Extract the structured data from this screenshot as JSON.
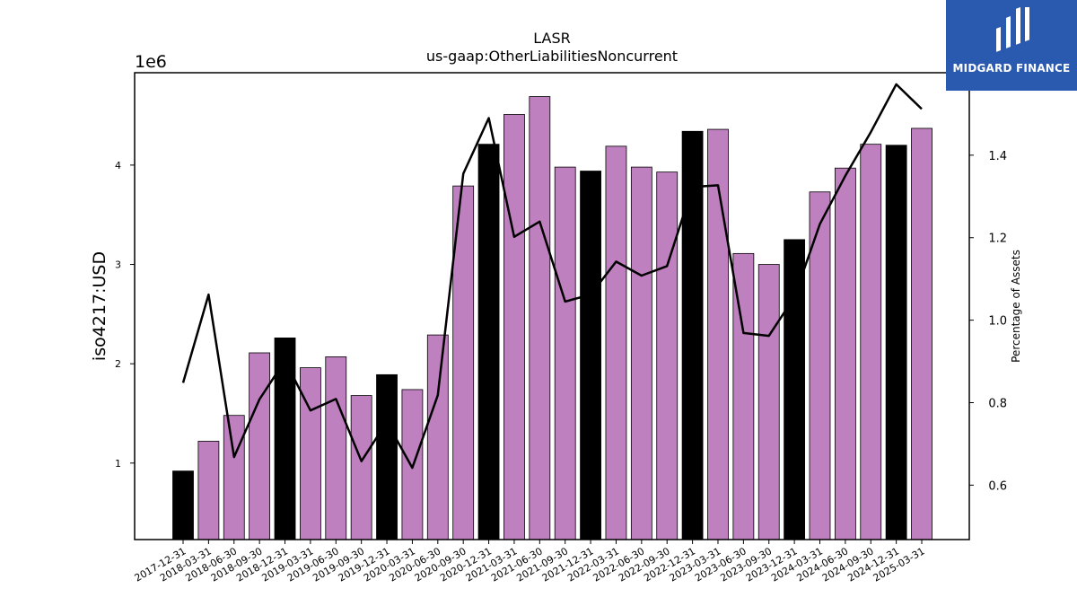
{
  "brand": {
    "name": "MIDGARD FINANCE",
    "icon": "midgard-logo-icon",
    "background": "#2a5ab0"
  },
  "chart_data": {
    "type": "bar",
    "title": "LASR",
    "subtitle": "us-gaap:OtherLiabilitiesNoncurrent",
    "ylabel": "iso4217:USD",
    "y_scale_label": "1e6",
    "y2label": "Percentage of Assets",
    "ylim": [
      230000,
      4930000
    ],
    "y2lim": [
      0.468,
      1.6
    ],
    "yticks": [
      1000000,
      2000000,
      3000000,
      4000000
    ],
    "ytick_labels": [
      "1",
      "2",
      "3",
      "4"
    ],
    "y2ticks": [
      0.6,
      0.8,
      1.0,
      1.2,
      1.4
    ],
    "y2tick_labels": [
      "0.6",
      "0.8",
      "1.0",
      "1.2",
      "1.4"
    ],
    "grid": false,
    "colors": {
      "annual": "#000000",
      "quarterly": "#bf80bf",
      "line": "#000000"
    },
    "categories": [
      "2017-12-31",
      "2018-03-31",
      "2018-06-30",
      "2018-09-30",
      "2018-12-31",
      "2019-03-31",
      "2019-06-30",
      "2019-09-30",
      "2019-12-31",
      "2020-03-31",
      "2020-06-30",
      "2020-09-30",
      "2020-12-31",
      "2021-03-31",
      "2021-06-30",
      "2021-09-30",
      "2021-12-31",
      "2022-03-31",
      "2022-06-30",
      "2022-09-30",
      "2022-12-31",
      "2023-03-31",
      "2023-06-30",
      "2023-09-30",
      "2023-12-31",
      "2024-03-31",
      "2024-06-30",
      "2024-09-30",
      "2024-12-31",
      "2025-03-31"
    ],
    "series": [
      {
        "kind": "bar",
        "values": [
          920000,
          1220000,
          1480000,
          2110000,
          2260000,
          1960000,
          2070000,
          1680000,
          1890000,
          1740000,
          2290000,
          3790000,
          4210000,
          4510000,
          4690000,
          3980000,
          3940000,
          4190000,
          3980000,
          3930000,
          4340000,
          4360000,
          3110000,
          3000000,
          3250000,
          3730000,
          3970000,
          4210000,
          4200000,
          4370000
        ],
        "annual": [
          true,
          false,
          false,
          false,
          true,
          false,
          false,
          false,
          true,
          false,
          false,
          false,
          true,
          false,
          false,
          false,
          true,
          false,
          false,
          false,
          true,
          false,
          false,
          false,
          true,
          false,
          false,
          false,
          true,
          false
        ]
      },
      {
        "kind": "line",
        "axis": "right",
        "values": [
          0.848,
          1.062,
          0.668,
          0.808,
          0.902,
          0.781,
          0.809,
          0.658,
          0.753,
          0.642,
          0.818,
          1.355,
          1.49,
          1.202,
          1.239,
          1.045,
          1.062,
          1.142,
          1.108,
          1.131,
          1.323,
          1.327,
          0.969,
          0.962,
          1.056,
          1.233,
          1.35,
          1.456,
          1.572,
          1.512
        ]
      }
    ]
  }
}
